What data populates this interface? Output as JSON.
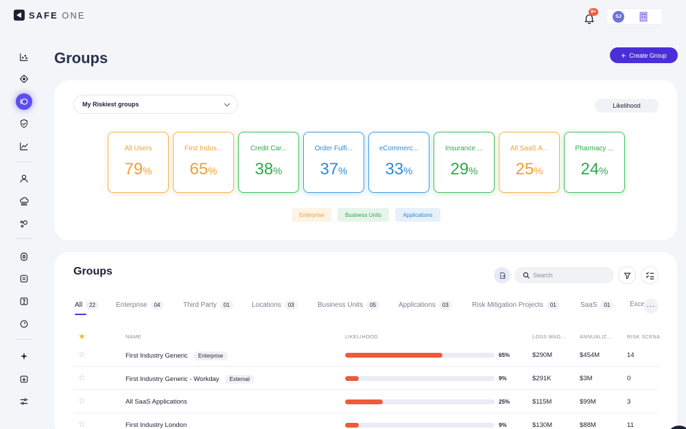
{
  "app": {
    "brand_main": "SAFE",
    "brand_sub": "ONE"
  },
  "header": {
    "notification_badge": "9+",
    "user_initials": "SJ"
  },
  "page": {
    "title": "Groups",
    "create_button": "Create Group"
  },
  "riskiest": {
    "dropdown_value": "My Riskiest groups",
    "metric_pill": "Likelihood",
    "tiles": [
      {
        "name": "All Users",
        "value": "79",
        "type": "enterprise"
      },
      {
        "name": "First Indus...",
        "value": "65",
        "type": "enterprise"
      },
      {
        "name": "Credit Car...",
        "value": "38",
        "type": "business-unit"
      },
      {
        "name": "Order Fulfi...",
        "value": "37",
        "type": "application"
      },
      {
        "name": "eCommerc...",
        "value": "33",
        "type": "application"
      },
      {
        "name": "Insurance ...",
        "value": "29",
        "type": "business-unit"
      },
      {
        "name": "All SaaS A...",
        "value": "25",
        "type": "enterprise"
      },
      {
        "name": "Pharmacy ...",
        "value": "24",
        "type": "business-unit"
      }
    ],
    "percent_sign": "%",
    "legend": {
      "enterprise": "Enterprise",
      "business_units": "Business Units",
      "applications": "Applications"
    },
    "colors": {
      "enterprise": "#f0a030",
      "business-unit": "#2ea84a",
      "application": "#2e8ad8"
    }
  },
  "groups": {
    "title": "Groups",
    "search_placeholder": "Search",
    "tabs": [
      {
        "label": "All",
        "count": "22"
      },
      {
        "label": "Enterprise",
        "count": "04"
      },
      {
        "label": "Third Party",
        "count": "01"
      },
      {
        "label": "Locations",
        "count": "03"
      },
      {
        "label": "Business Units",
        "count": "05"
      },
      {
        "label": "Applications",
        "count": "03"
      },
      {
        "label": "Risk Mitigation Projects",
        "count": "01"
      },
      {
        "label": "SaaS",
        "count": "01"
      },
      {
        "label": "Exce",
        "count": ""
      }
    ],
    "columns": {
      "name": "NAME",
      "likelihood": "LIKELIHOOD",
      "loss": "LOSS MAG...",
      "annualized": "ANNUALIZ...",
      "scenarios": "RISK SCENA"
    },
    "rows": [
      {
        "name": "First Industry Generic",
        "tag": "Enterprise",
        "likelihood": 65,
        "likelihood_label": "65%",
        "loss": "$290M",
        "annualized": "$454M",
        "scenarios": "14"
      },
      {
        "name": "First Industry Generic - Workday",
        "tag": "External",
        "likelihood": 9,
        "likelihood_label": "9%",
        "loss": "$291K",
        "annualized": "$3M",
        "scenarios": "0"
      },
      {
        "name": "All SaaS Applications",
        "tag": "",
        "likelihood": 25,
        "likelihood_label": "25%",
        "loss": "$115M",
        "annualized": "$99M",
        "scenarios": "3"
      },
      {
        "name": "First Industry London",
        "tag": "",
        "likelihood": 9,
        "likelihood_label": "9%",
        "loss": "$130M",
        "annualized": "$88M",
        "scenarios": "11"
      }
    ]
  }
}
